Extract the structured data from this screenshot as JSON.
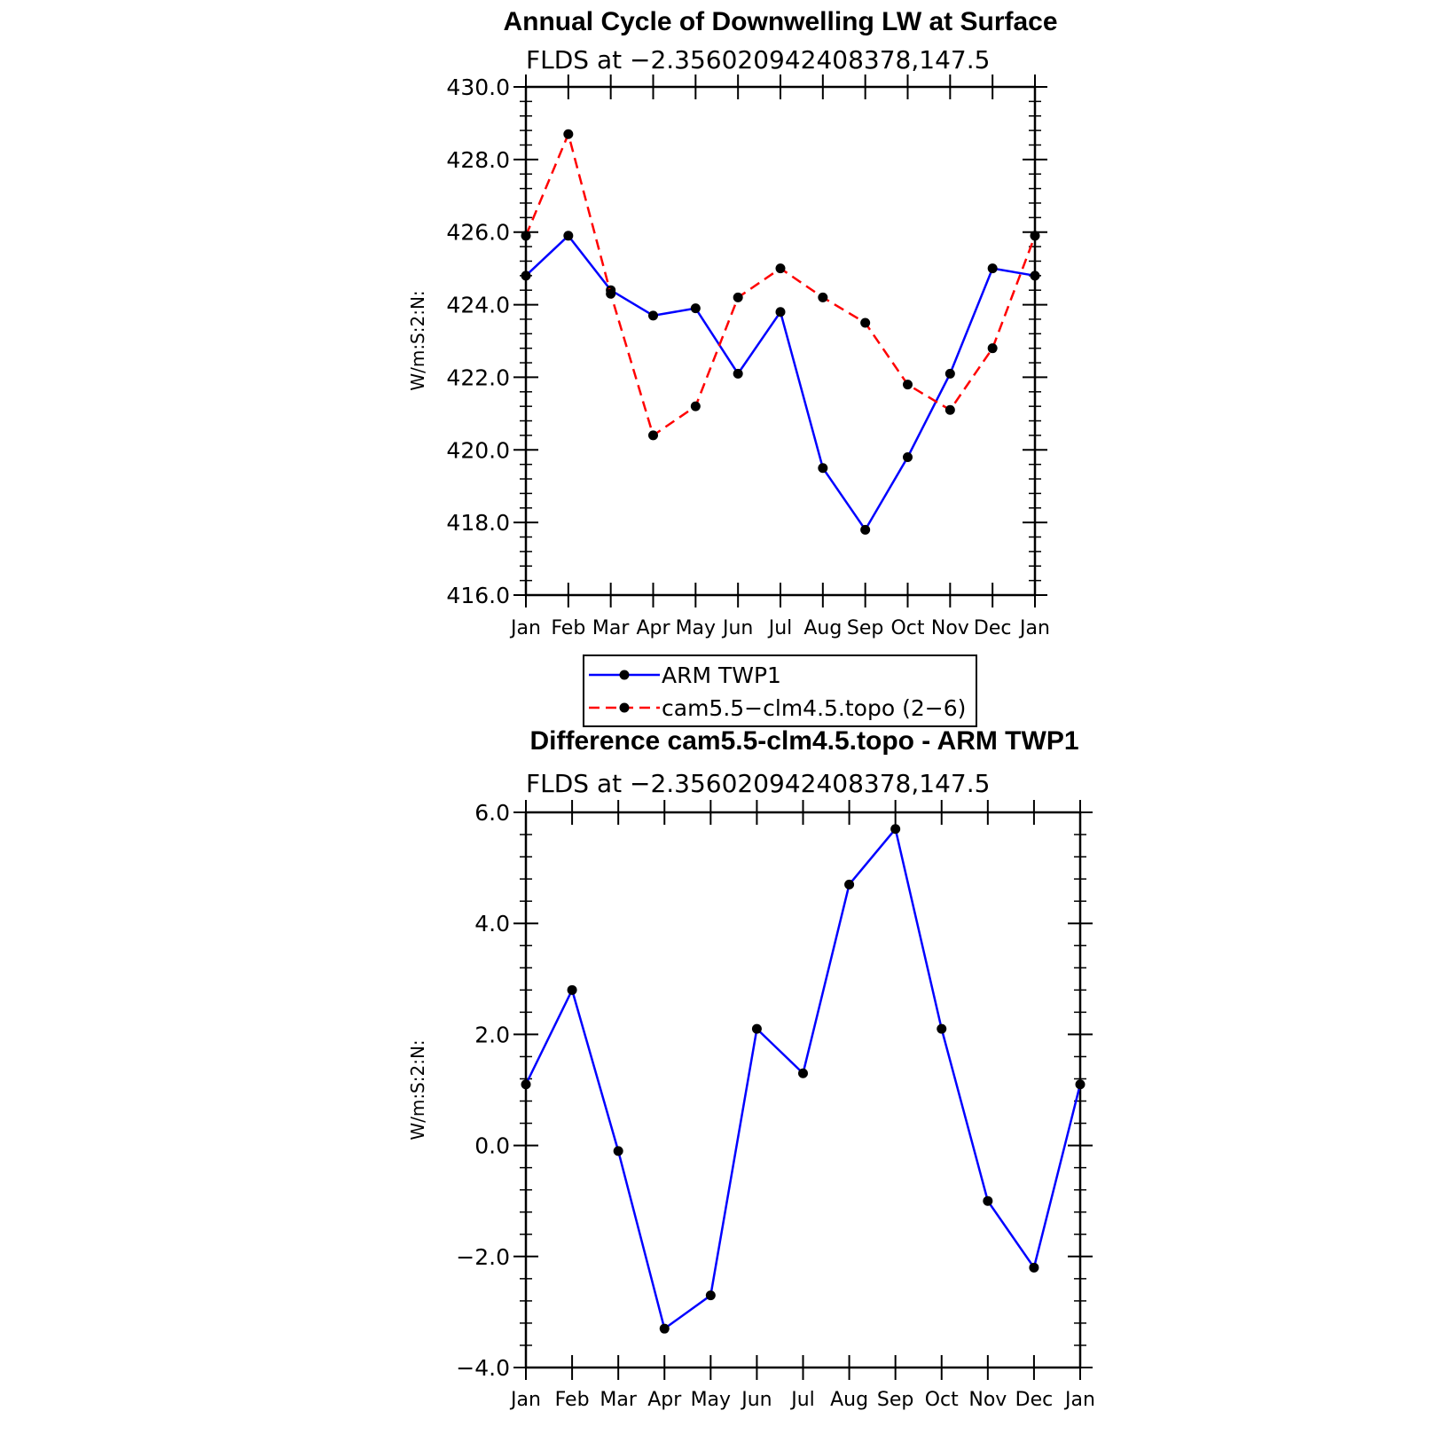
{
  "chart_data": [
    {
      "type": "line",
      "title": "Annual Cycle of Downwelling LW at Surface",
      "subtitle": "FLDS at −2.356020942408378,147.5",
      "xlabel": "",
      "ylabel": "W/m:S:2:N:",
      "categories": [
        "Jan",
        "Feb",
        "Mar",
        "Apr",
        "May",
        "Jun",
        "Jul",
        "Aug",
        "Sep",
        "Oct",
        "Nov",
        "Dec",
        "Jan"
      ],
      "ylim": [
        416.0,
        430.0
      ],
      "yticks": [
        "416.0",
        "418.0",
        "420.0",
        "422.0",
        "424.0",
        "426.0",
        "428.0",
        "430.0"
      ],
      "series": [
        {
          "name": "ARM TWP1",
          "color": "#0000ff",
          "dash": "solid",
          "values": [
            424.8,
            425.9,
            424.4,
            423.7,
            423.9,
            422.1,
            423.8,
            419.5,
            417.8,
            419.8,
            422.1,
            425.0,
            424.8
          ]
        },
        {
          "name": "cam5.5−clm4.5.topo (2−6)",
          "color": "#ff0000",
          "dash": "dashed",
          "values": [
            425.9,
            428.7,
            424.3,
            420.4,
            421.2,
            424.2,
            425.0,
            424.2,
            423.5,
            421.8,
            421.1,
            422.8,
            425.9
          ]
        }
      ],
      "legend_position": "below"
    },
    {
      "type": "line",
      "title": "Difference cam5.5-clm4.5.topo - ARM TWP1",
      "subtitle": "FLDS at −2.356020942408378,147.5",
      "xlabel": "",
      "ylabel": "W/m:S:2:N:",
      "categories": [
        "Jan",
        "Feb",
        "Mar",
        "Apr",
        "May",
        "Jun",
        "Jul",
        "Aug",
        "Sep",
        "Oct",
        "Nov",
        "Dec",
        "Jan"
      ],
      "ylim": [
        -4.0,
        6.0
      ],
      "yticks": [
        "−4.0",
        "−2.0",
        "0.0",
        "2.0",
        "4.0",
        "6.0"
      ],
      "series": [
        {
          "color": "#0000ff",
          "dash": "solid",
          "values": [
            1.1,
            2.8,
            -0.1,
            -3.3,
            -2.7,
            2.1,
            1.3,
            4.7,
            5.7,
            2.1,
            -1.0,
            -2.2,
            1.1
          ]
        }
      ]
    }
  ]
}
